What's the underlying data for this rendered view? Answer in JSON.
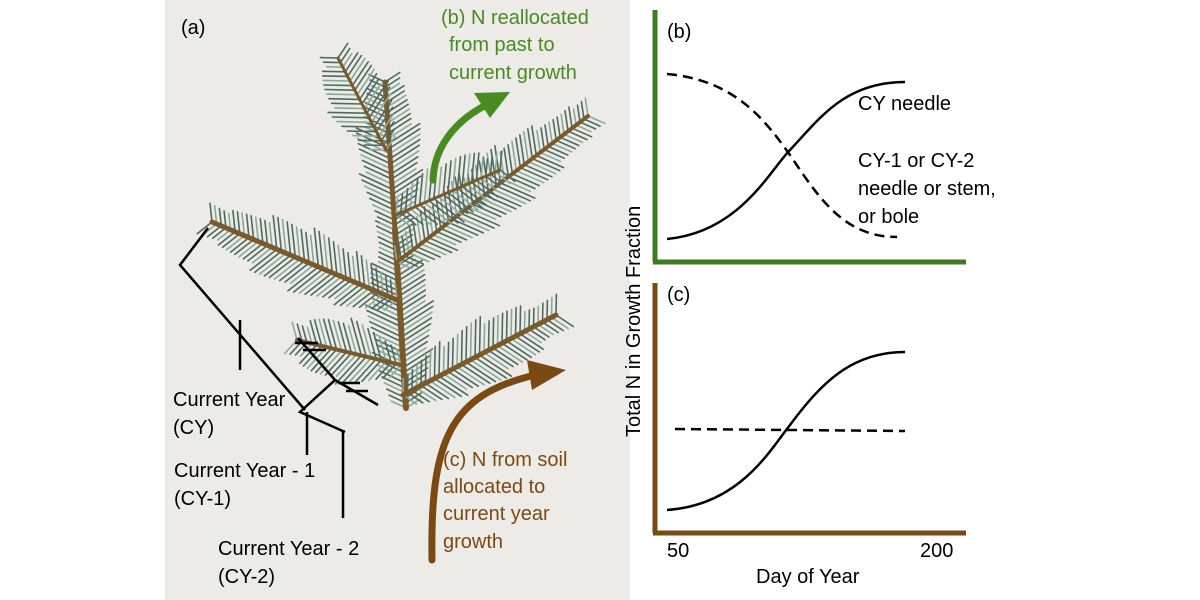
{
  "panel_a": {
    "label": "(a)",
    "annotation_b": [
      "(b) N reallocated",
      "from past to",
      "current growth"
    ],
    "annotation_c": [
      "(c) N from soil",
      "allocated to",
      "current year",
      "growth"
    ],
    "cy_label": [
      "Current Year",
      "(CY)"
    ],
    "cy1_label": [
      "Current Year - 1",
      "(CY-1)"
    ],
    "cy2_label": [
      "Current Year - 2",
      "(CY-2)"
    ]
  },
  "panel_b": {
    "label": "(b)",
    "curve_label_solid": "CY needle",
    "curve_label_dashed": [
      "CY-1 or CY-2",
      "needle or stem,",
      "or bole"
    ]
  },
  "panel_c": {
    "label": "(c)"
  },
  "axes": {
    "ylabel": "Total N in Growth Fraction",
    "xlabel": "Day of Year",
    "xtick_start": "50",
    "xtick_end": "200"
  },
  "colors": {
    "green": "#3e7c1f",
    "annotation_green": "#4a8a22",
    "brown": "#7a4a12",
    "annotation_brown": "#7a4a12",
    "ink": "#000000",
    "needle_dark": "#4e6a5e",
    "needle_light": "#8aa99a",
    "twig": "#7a5a2a"
  }
}
